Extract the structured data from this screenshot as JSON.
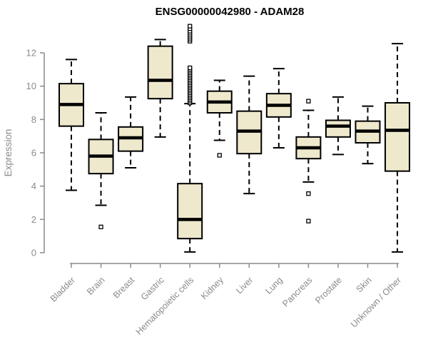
{
  "chart_data": {
    "type": "boxplot",
    "title": "ENSG00000042980 - ADAM28",
    "ylabel": "Expression",
    "xlabel": "",
    "ylim": [
      0,
      13.7
    ],
    "yticks": [
      0,
      2,
      4,
      6,
      8,
      10,
      12
    ],
    "grid": false,
    "legend": false,
    "categories": [
      "Bladder",
      "Brain",
      "Breast",
      "Gastric",
      "Hematopoietic cells",
      "Kidney",
      "Liver",
      "Lung",
      "Pancreas",
      "Prostate",
      "Skin",
      "Unknown / Other"
    ],
    "boxes": [
      {
        "category": "Bladder",
        "whisker_low": 3.75,
        "q1": 7.6,
        "median": 8.9,
        "q3": 10.15,
        "whisker_high": 11.6,
        "outliers": []
      },
      {
        "category": "Brain",
        "whisker_low": 2.85,
        "q1": 4.75,
        "median": 5.8,
        "q3": 6.8,
        "whisker_high": 8.4,
        "outliers": [
          1.55
        ]
      },
      {
        "category": "Breast",
        "whisker_low": 5.1,
        "q1": 6.1,
        "median": 6.9,
        "q3": 7.55,
        "whisker_high": 9.35,
        "outliers": []
      },
      {
        "category": "Gastric",
        "whisker_low": 6.95,
        "q1": 9.25,
        "median": 10.35,
        "q3": 12.4,
        "whisker_high": 12.8,
        "outliers": []
      },
      {
        "category": "Hematopoietic cells",
        "whisker_low": 0.05,
        "q1": 0.85,
        "median": 2.0,
        "q3": 4.15,
        "whisker_high": 8.95,
        "outliers": [
          9.0,
          9.1,
          9.2,
          9.3,
          9.4,
          9.5,
          9.6,
          9.7,
          9.8,
          9.9,
          10.0,
          10.1,
          10.2,
          10.3,
          10.4,
          10.5,
          10.6,
          10.7,
          10.8,
          10.9,
          11.0,
          11.1,
          12.7,
          12.82,
          12.94,
          13.06,
          13.18,
          13.3,
          13.45,
          13.6
        ]
      },
      {
        "category": "Kidney",
        "whisker_low": 6.75,
        "q1": 8.4,
        "median": 9.05,
        "q3": 9.7,
        "whisker_high": 10.35,
        "outliers": [
          5.85
        ]
      },
      {
        "category": "Liver",
        "whisker_low": 3.55,
        "q1": 5.95,
        "median": 7.3,
        "q3": 8.5,
        "whisker_high": 10.6,
        "outliers": []
      },
      {
        "category": "Lung",
        "whisker_low": 6.3,
        "q1": 8.15,
        "median": 8.85,
        "q3": 9.55,
        "whisker_high": 11.05,
        "outliers": []
      },
      {
        "category": "Pancreas",
        "whisker_low": 4.25,
        "q1": 5.65,
        "median": 6.3,
        "q3": 6.95,
        "whisker_high": 8.55,
        "outliers": [
          9.1,
          3.55,
          1.9
        ]
      },
      {
        "category": "Prostate",
        "whisker_low": 5.9,
        "q1": 6.95,
        "median": 7.6,
        "q3": 7.95,
        "whisker_high": 9.35,
        "outliers": []
      },
      {
        "category": "Skin",
        "whisker_low": 5.35,
        "q1": 6.6,
        "median": 7.3,
        "q3": 7.9,
        "whisker_high": 8.8,
        "outliers": []
      },
      {
        "category": "Unknown / Other",
        "whisker_low": 0.05,
        "q1": 4.9,
        "median": 7.35,
        "q3": 9.0,
        "whisker_high": 12.55,
        "outliers": []
      }
    ],
    "colors": {
      "box_fill": "#EEE8CD",
      "box_border": "#000000",
      "median": "#000000",
      "whisker": "#000000",
      "outlier": "#000000",
      "axis": "#8a8a8a",
      "tick_labels": "#8a8a8a",
      "title": "#000000",
      "background": "#FFFFFF"
    }
  }
}
